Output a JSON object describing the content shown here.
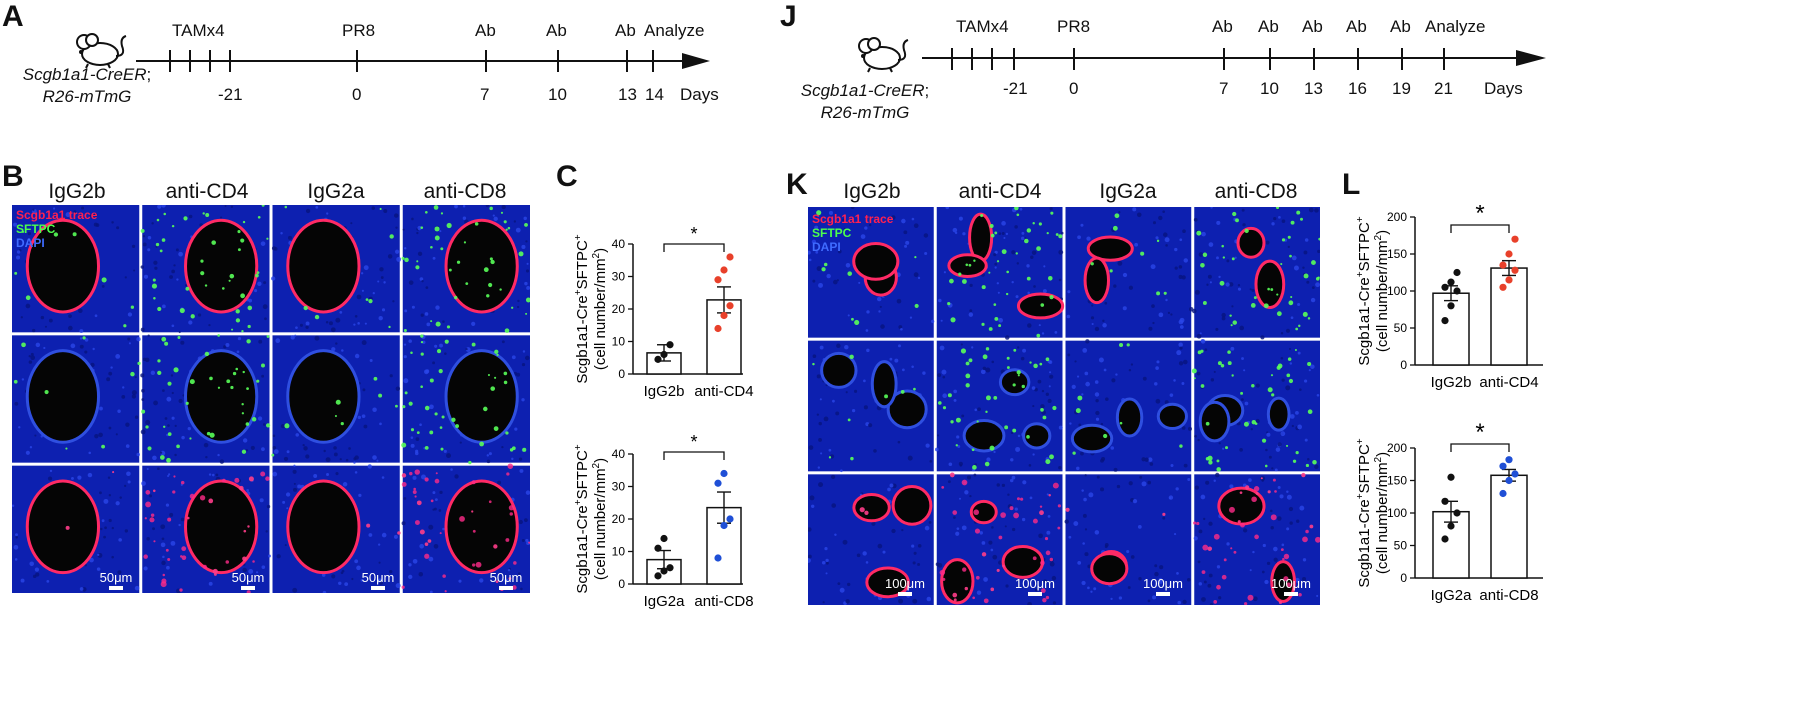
{
  "panels": {
    "A": "A",
    "B": "B",
    "C": "C",
    "J": "J",
    "K": "K",
    "L": "L"
  },
  "timeline_a": {
    "tam_label": "TAMx4",
    "events": [
      "PR8",
      "Ab",
      "Ab",
      "Ab",
      "Analyze"
    ],
    "days": [
      "-21",
      "0",
      "7",
      "10",
      "13",
      "14"
    ],
    "unit": "Days",
    "mouse_line1": "Scgb1a1-CreER",
    "mouse_sep": ";",
    "mouse_line2": "R26-mTmG"
  },
  "timeline_j": {
    "tam_label": "TAMx4",
    "events": [
      "PR8",
      "Ab",
      "Ab",
      "Ab",
      "Ab",
      "Ab",
      "Analyze"
    ],
    "days": [
      "-21",
      "0",
      "7",
      "10",
      "13",
      "16",
      "19",
      "21"
    ],
    "unit": "Days",
    "mouse_line1": "Scgb1a1-CreER",
    "mouse_sep": ";",
    "mouse_line2": "R26-mTmG"
  },
  "micro_b": {
    "columns": [
      "IgG2b",
      "anti-CD4",
      "IgG2a",
      "anti-CD8"
    ],
    "legend": [
      "Scgb1a1 trace",
      "SFTPC",
      "DAPI"
    ],
    "scale": "50μm"
  },
  "micro_k": {
    "columns": [
      "IgG2b",
      "anti-CD4",
      "IgG2a",
      "anti-CD8"
    ],
    "legend": [
      "Scgb1a1 trace",
      "SFTPC",
      "DAPI"
    ],
    "scale": "100μm"
  },
  "colors": {
    "red_dots": "#e8402a",
    "blue_dots": "#1f4fd6",
    "black": "#111111",
    "tissue_blue": "#0c1fb8",
    "trace_red": "#ff2050",
    "sftpc_green": "#4cff4c"
  },
  "chart_data": [
    {
      "id": "C-top",
      "type": "bar",
      "categories": [
        "IgG2b",
        "anti-CD4"
      ],
      "values": [
        6.5,
        22.8
      ],
      "errors": [
        2.5,
        4.0
      ],
      "points": [
        [
          4.5,
          6,
          9
        ],
        [
          14,
          18,
          21,
          29,
          32,
          36
        ]
      ],
      "ylabel_line1": "Scgb1a1-Cre",
      "ylabel_sup1": "+",
      "ylabel_mid": "SFTPC",
      "ylabel_sup2": "+",
      "ylabel_line2_pre": "(cell number/mm",
      "ylabel_line2_sup": "2",
      "ylabel_line2_post": ")",
      "ylim": [
        0,
        40
      ],
      "yticks": [
        "0",
        "10",
        "20",
        "30",
        "40"
      ],
      "significance": "*"
    },
    {
      "id": "C-bottom",
      "type": "bar",
      "categories": [
        "IgG2a",
        "anti-CD8"
      ],
      "values": [
        7.5,
        23.5
      ],
      "errors": [
        2.8,
        4.8
      ],
      "points": [
        [
          2.5,
          4,
          5,
          11,
          14
        ],
        [
          8,
          18,
          20,
          31,
          34
        ]
      ],
      "ylabel_line1": "Scgb1a1-Cre",
      "ylabel_sup1": "+",
      "ylabel_mid": "SFTPC",
      "ylabel_sup2": "+",
      "ylabel_line2_pre": "(cell number/mm",
      "ylabel_line2_sup": "2",
      "ylabel_line2_post": ")",
      "ylim": [
        0,
        40
      ],
      "yticks": [
        "0",
        "10",
        "20",
        "30",
        "40"
      ],
      "significance": "*"
    },
    {
      "id": "L-top",
      "type": "bar",
      "categories": [
        "IgG2b",
        "anti-CD4"
      ],
      "values": [
        97,
        131
      ],
      "errors": [
        10,
        10
      ],
      "points": [
        [
          60,
          80,
          100,
          105,
          112,
          125
        ],
        [
          105,
          115,
          128,
          135,
          150,
          170
        ]
      ],
      "ylabel_line1": "Scgb1a1-Cre",
      "ylabel_sup1": "+",
      "ylabel_mid": "SFTPC",
      "ylabel_sup2": "+",
      "ylabel_line2_pre": "(cell number/mm",
      "ylabel_line2_sup": "2",
      "ylabel_line2_post": ")",
      "ylim": [
        0,
        200
      ],
      "yticks": [
        "0",
        "50",
        "100",
        "150",
        "200"
      ],
      "significance": "*"
    },
    {
      "id": "L-bottom",
      "type": "bar",
      "categories": [
        "IgG2a",
        "anti-CD8"
      ],
      "values": [
        102,
        158
      ],
      "errors": [
        16,
        9
      ],
      "points": [
        [
          60,
          80,
          100,
          118,
          155
        ],
        [
          130,
          150,
          160,
          172,
          182
        ]
      ],
      "ylabel_line1": "Scgb1a1-Cre",
      "ylabel_sup1": "+",
      "ylabel_mid": "SFTPC",
      "ylabel_sup2": "+",
      "ylabel_line2_pre": "(cell number/mm",
      "ylabel_line2_sup": "2",
      "ylabel_line2_post": ")",
      "ylim": [
        0,
        200
      ],
      "yticks": [
        "0",
        "50",
        "100",
        "150",
        "200"
      ],
      "significance": "*"
    }
  ]
}
